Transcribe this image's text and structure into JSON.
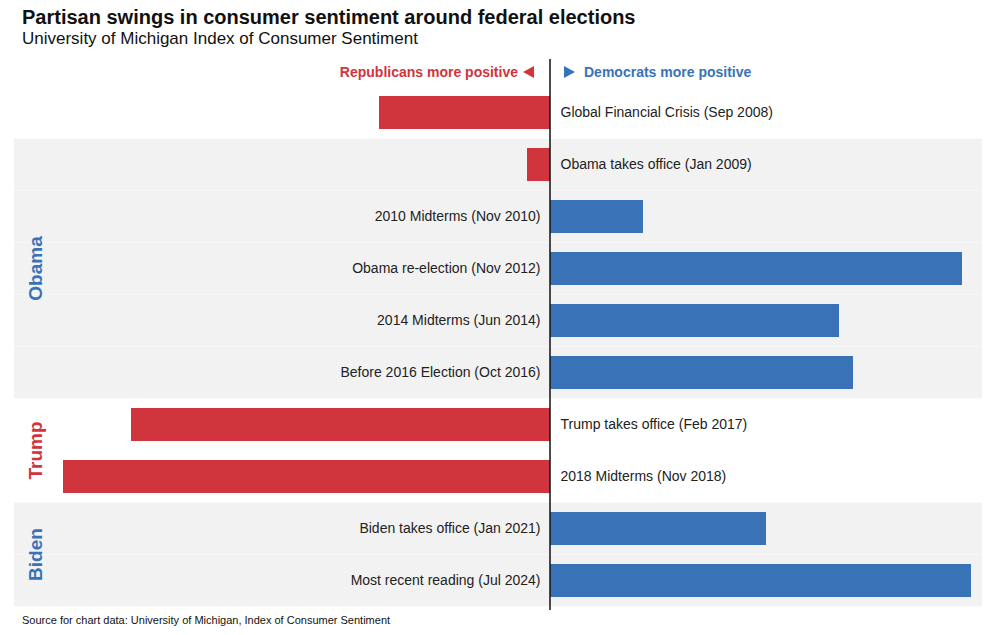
{
  "chart_data": {
    "type": "bar",
    "orientation": "horizontal",
    "title": "Partisan swings in consumer sentiment around federal elections",
    "subtitle": "University of Michigan Index of Consumer Sentiment",
    "caption": "Source for chart data: University of Michigan, Index of Consumer Sentiment",
    "annotations": [
      {
        "text": "Republicans more positive",
        "color": "#d0343c"
      },
      {
        "text": "Democrats more positive",
        "color": "#3a72b8"
      }
    ],
    "categories": [
      "Global Financial Crisis (Sep 2008)",
      "Obama takes office (Jan 2009)",
      "2010 Midterms (Nov 2010)",
      "Obama re-election (Nov 2012)",
      "2014 Midterms (Jun 2014)",
      "Before 2016 Election (Oct 2016)",
      "Trump takes office (Feb 2017)",
      "2018 Midterms (Nov 2018)",
      "Biden takes office (Jan 2021)",
      "Most recent reading (Jul 2024)"
    ],
    "values": [
      -17.1,
      -2.3,
      9.3,
      41.2,
      28.9,
      30.3,
      -41.9,
      -48.7,
      21.6,
      42.1
    ],
    "colors": [
      "#d0343c",
      "#d0343c",
      "#3a72b8",
      "#3a72b8",
      "#3a72b8",
      "#3a72b8",
      "#d0343c",
      "#d0343c",
      "#3a72b8",
      "#3a72b8"
    ],
    "xlim": [
      -53.6,
      43.2
    ],
    "tick_labels": false,
    "groups": [
      {
        "name": "Obama",
        "color": "#3a72b8",
        "categories": [
          "Obama takes office (Jan 2009)",
          "2010 Midterms (Nov 2010)",
          "Obama re-election (Nov 2012)",
          "2014 Midterms (Jun 2014)",
          "Before 2016 Election (Oct 2016)"
        ]
      },
      {
        "name": "Trump",
        "color": "#d0343c",
        "categories": [
          "Trump takes office (Feb 2017)",
          "2018 Midterms (Nov 2018)"
        ]
      },
      {
        "name": "Biden",
        "color": "#3a72b8",
        "categories": [
          "Biden takes office (Jan 2021)",
          "Most recent reading (Jul 2024)"
        ]
      }
    ]
  }
}
